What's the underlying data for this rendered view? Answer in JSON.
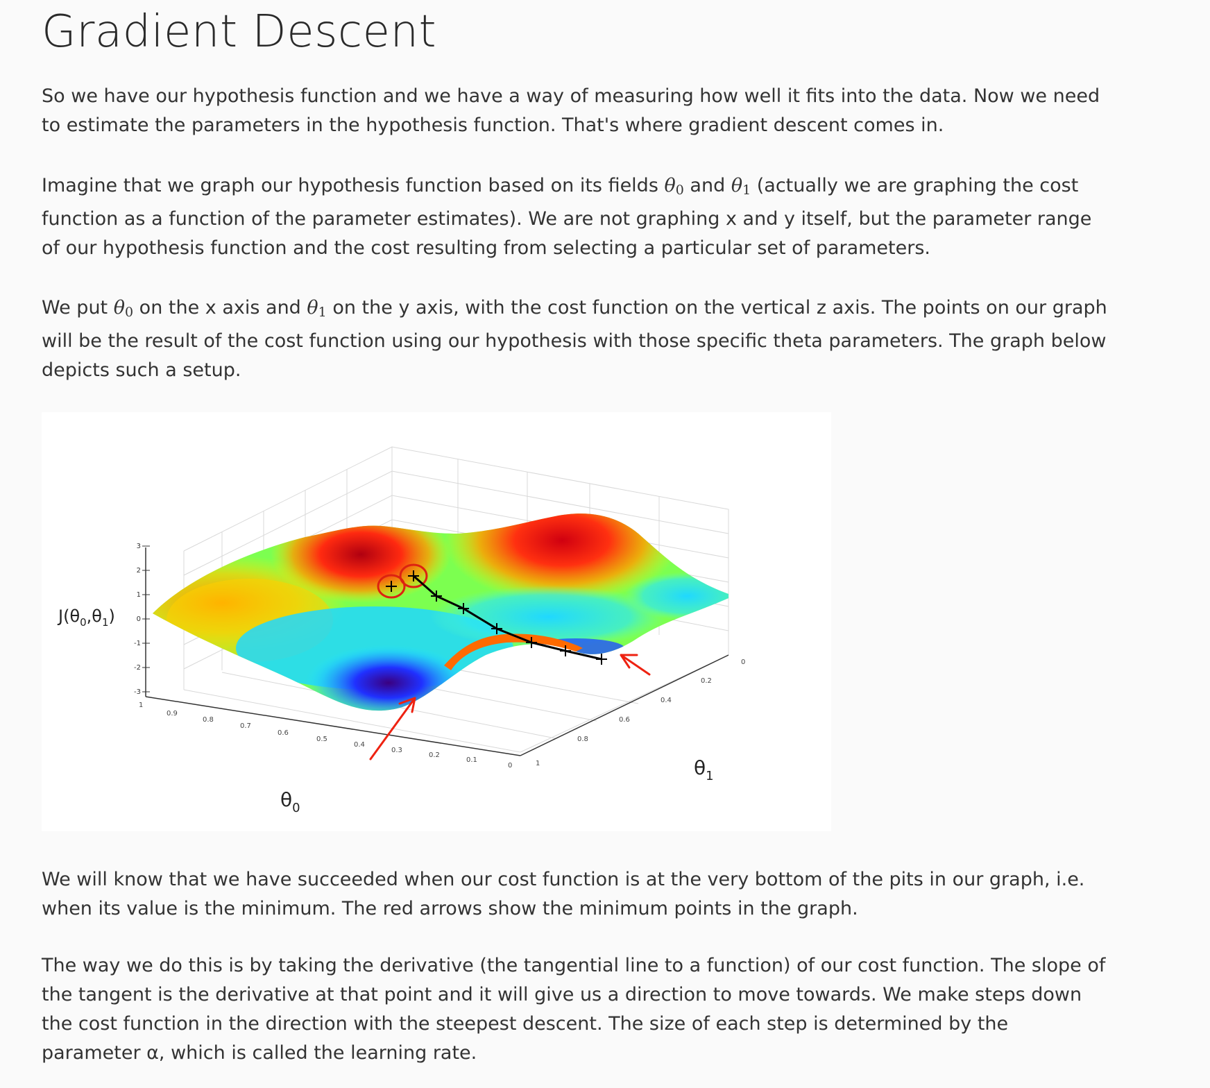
{
  "title": "Gradient Descent",
  "paragraphs": {
    "p1": "So we have our hypothesis function and we have a way of measuring how well it fits into the data. Now we need to estimate the parameters in the hypothesis function. That's where gradient descent comes in.",
    "p2_a": "Imagine that we graph our hypothesis function based on its fields ",
    "p2_b": " and ",
    "p2_c": " (actually we are graphing the cost function as a function of the parameter estimates). We are not graphing x and y itself, but the parameter range of our hypothesis function and the cost resulting from selecting a particular set of parameters.",
    "p3_a": "We put ",
    "p3_b": " on the x axis and ",
    "p3_c": " on the y axis, with the cost function on the vertical z axis. The points on our graph will be the result of the cost function using our hypothesis with those specific theta parameters. The graph below depicts such a setup.",
    "p4": "We will know that we have succeeded when our cost function is at the very bottom of the pits in our graph, i.e. when its value is the minimum. The red arrows show the minimum points in the graph.",
    "p5": "The way we do this is by taking the derivative (the tangential line to a function) of our cost function. The slope of the tangent is the derivative at that point and it will give us a direction to move towards. We make steps down the cost function in the direction with the steepest descent. The size of each step is determined by the parameter α, which is called the learning rate."
  },
  "math": {
    "theta": "θ",
    "sub0": "0",
    "sub1": "1"
  },
  "figure": {
    "z_label_prefix": "J(θ",
    "z_label_sub0": "0",
    "z_label_mid": ",θ",
    "z_label_sub1": "1",
    "z_label_suffix": ")",
    "x_label": "θ",
    "x_label_sub": "0",
    "y_label": "θ",
    "y_label_sub": "1",
    "z_ticks": [
      "3",
      "2",
      "1",
      "0",
      "-1",
      "-2",
      "-3"
    ],
    "x_ticks": [
      "1",
      "0.9",
      "0.8",
      "0.7",
      "0.6",
      "0.5",
      "0.4",
      "0.3",
      "0.2",
      "0.1",
      "0"
    ],
    "y_ticks": [
      "1",
      "0.8",
      "0.6",
      "0.4",
      "0.2",
      "0"
    ],
    "colors": {
      "path": "#000000",
      "arrows": "#ee2211",
      "circles": "#dd2211"
    }
  }
}
